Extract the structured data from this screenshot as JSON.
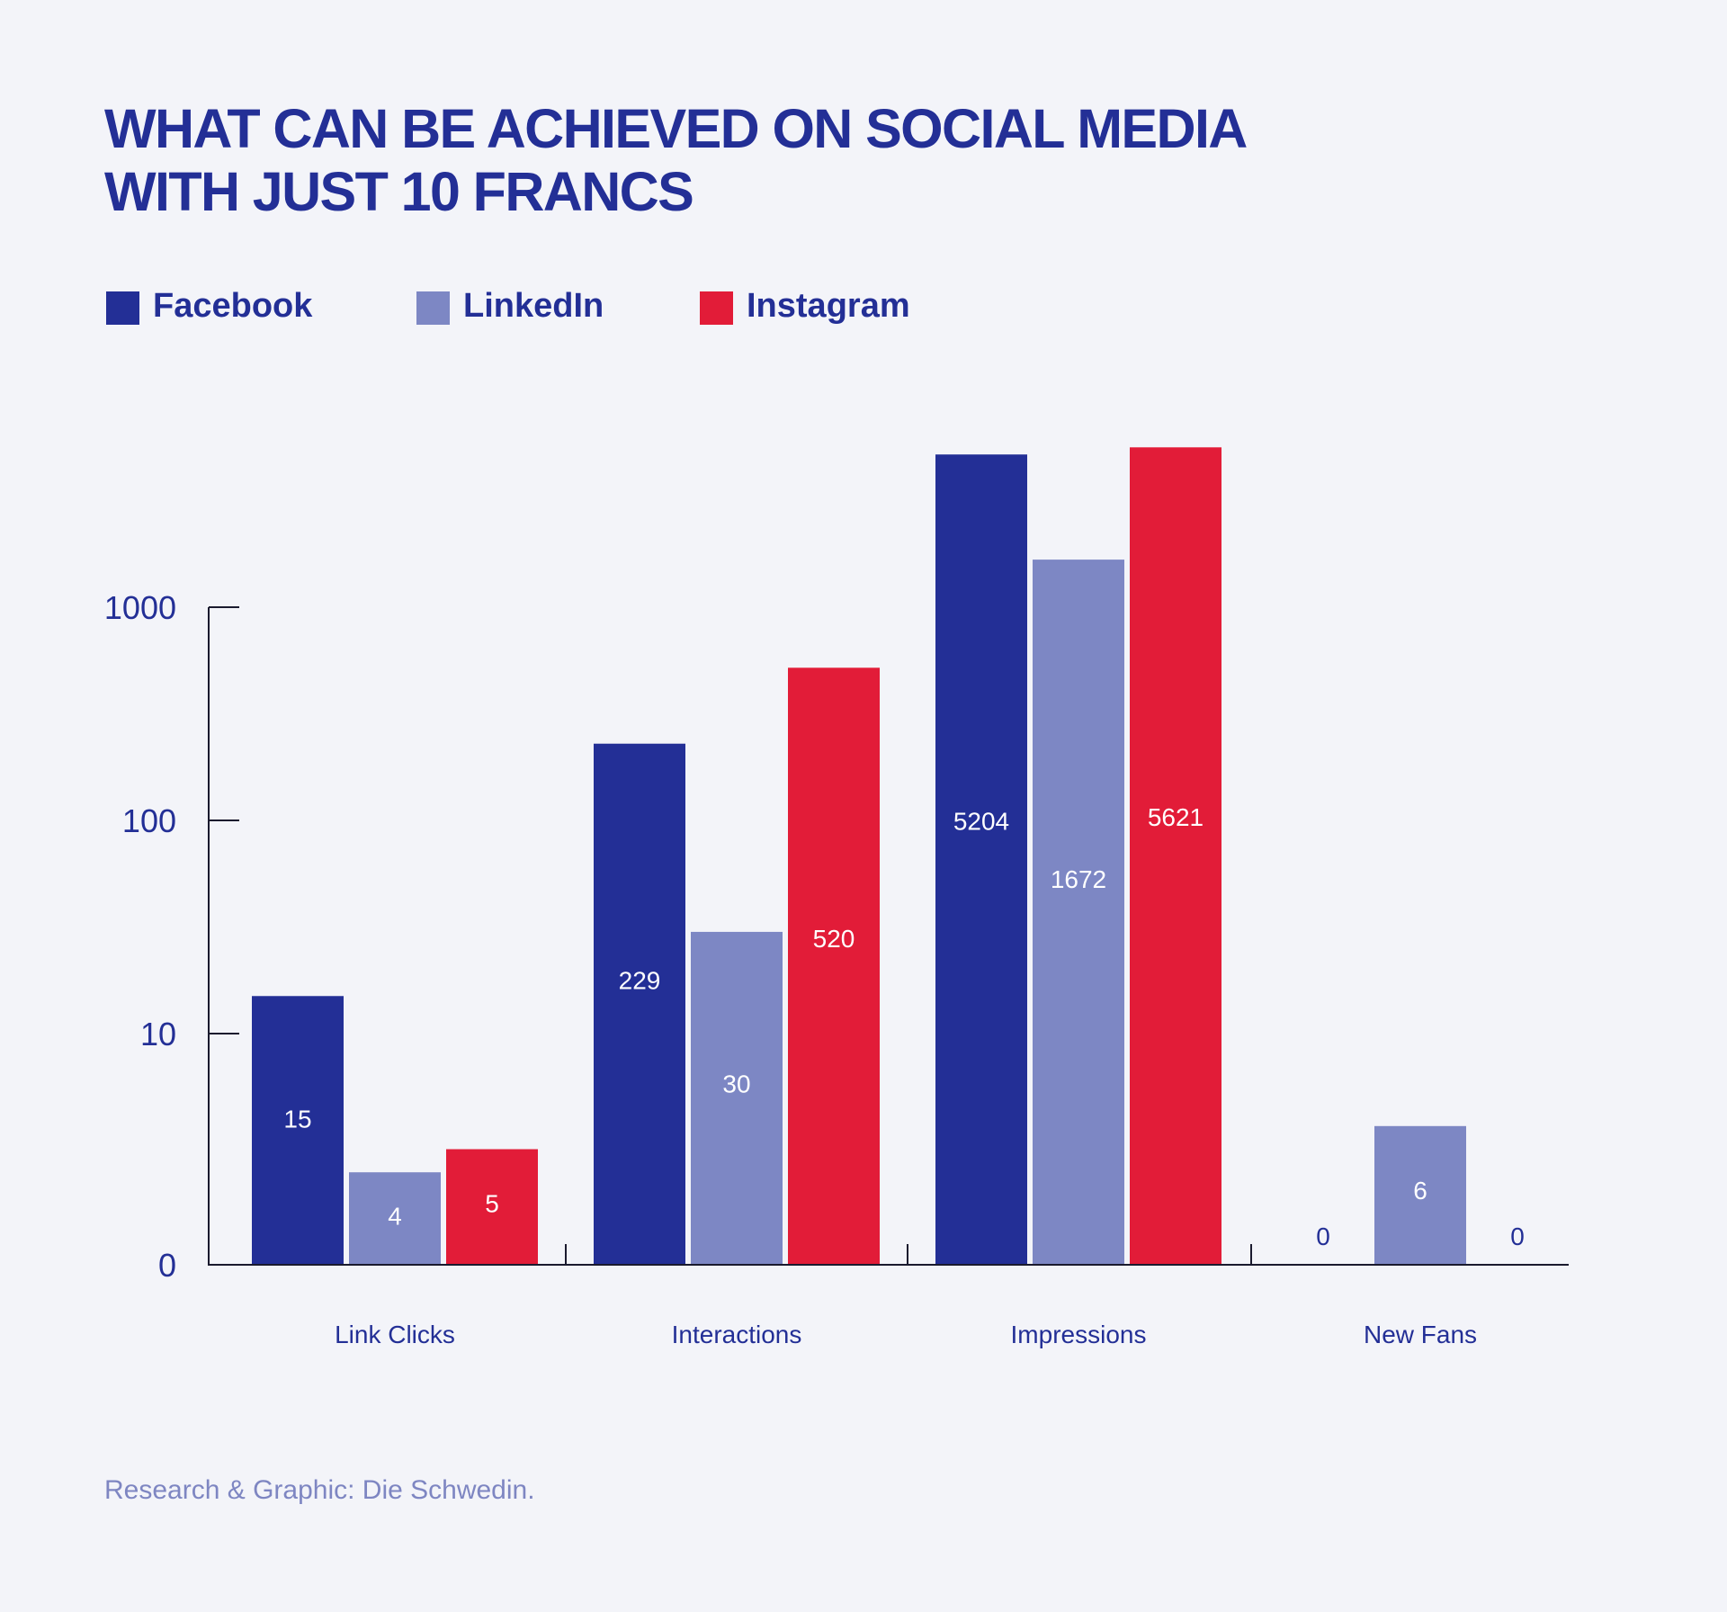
{
  "title_line1": "WHAT CAN BE ACHIEVED ON SOCIAL MEDIA",
  "title_line2": "WITH JUST 10 FRANCS",
  "source": "Research & Graphic: Die Schwedin.",
  "colors": {
    "facebook": "#232f96",
    "linkedin": "#7d87c4",
    "instagram": "#e21c38",
    "text": "#232f96",
    "source": "#7e86c2",
    "background": "#f3f4f9"
  },
  "chart_data": {
    "type": "bar",
    "title": "WHAT CAN BE ACHIEVED ON SOCIAL MEDIA WITH JUST 10 FRANCS",
    "categories": [
      "Link Clicks",
      "Interactions",
      "Impressions",
      "New Fans"
    ],
    "series": [
      {
        "name": "Facebook",
        "color": "#232f96",
        "values": [
          15,
          229,
          5204,
          0
        ],
        "labels": [
          "15",
          "229",
          "5204",
          "0"
        ]
      },
      {
        "name": "LinkedIn",
        "color": "#7d87c4",
        "values": [
          4,
          30,
          1672,
          6
        ],
        "labels": [
          "4",
          "30",
          "1672",
          "6"
        ]
      },
      {
        "name": "Instagram",
        "color": "#e21c38",
        "values": [
          5,
          520,
          5621,
          0
        ],
        "labels": [
          "5",
          "520",
          "5621",
          "0"
        ]
      }
    ],
    "yscale": "log",
    "yticks": [
      0,
      10,
      100,
      1000
    ],
    "ytick_labels": [
      "0",
      "10",
      "100",
      "1000"
    ],
    "xlabel": "",
    "ylabel": "",
    "legend": "top-left",
    "grid": false
  }
}
